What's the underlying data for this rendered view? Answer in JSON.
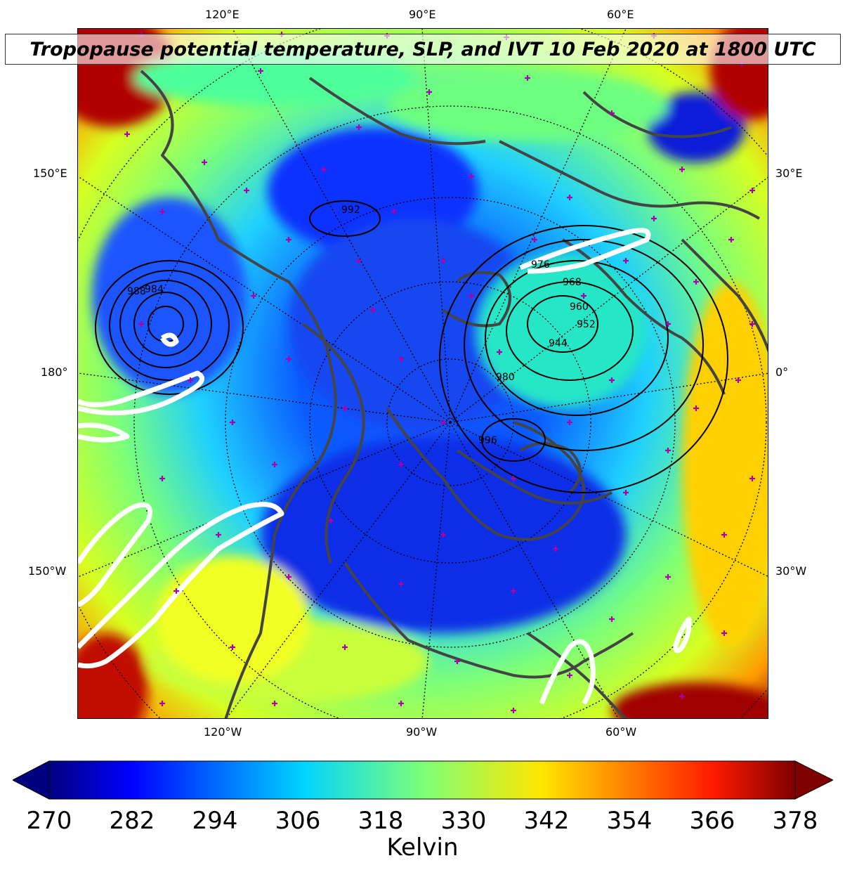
{
  "title": "Tropopause potential temperature, SLP, and IVT 10 Feb 2020 at 1800 UTC",
  "lon_labels": {
    "top": [
      "120°E",
      "90°E",
      "60°E"
    ],
    "left": [
      "150°E",
      "180°",
      "150°W"
    ],
    "right": [
      "30°E",
      "0°",
      "30°W"
    ],
    "bottom": [
      "120°W",
      "90°W",
      "60°W"
    ]
  },
  "slp_contour_labels": [
    "992",
    "984",
    "976",
    "968",
    "960",
    "952",
    "944",
    "988",
    "980",
    "996"
  ],
  "colorbar": {
    "ticks": [
      "270",
      "282",
      "294",
      "306",
      "318",
      "330",
      "342",
      "354",
      "366",
      "378"
    ],
    "label": "Kelvin",
    "range": [
      270,
      378
    ],
    "extend": "both"
  },
  "colors": {
    "low": "#00007f",
    "mid": "#7cff79",
    "high": "#7f0000",
    "coastline": "#444444",
    "ivt_contour": "#ffffff",
    "markers": "#aa00aa"
  }
}
